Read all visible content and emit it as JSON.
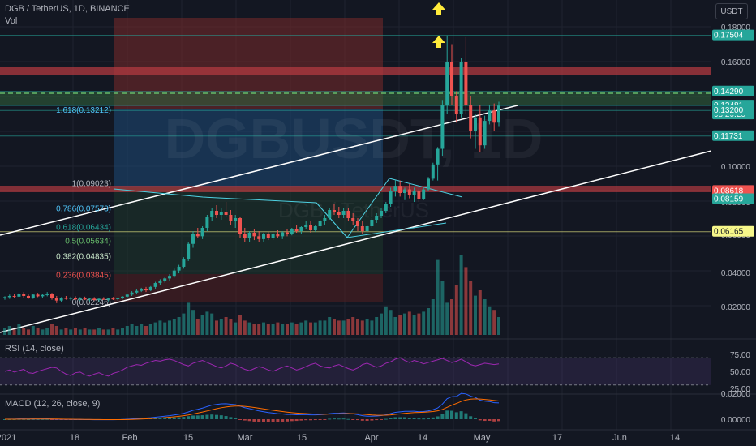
{
  "header": {
    "symbol_line": "DGB / TetherUS, 1D, BINANCE",
    "volume_label": "Vol",
    "currency_button": "USDT",
    "watermark_main": "DGBUSDT, 1D",
    "watermark_sub": "DGB / TetherUS"
  },
  "colors": {
    "background": "#131722",
    "up": "#26a69a",
    "down": "#ef5350",
    "arrow": "#ffeb3b",
    "rsi": "#9c27b0",
    "macd": "#2962ff",
    "signal": "#ff6d00",
    "channel": "#ffffff"
  },
  "chart_data": [
    {
      "type": "candlestick",
      "title": "DGB / TetherUS, 1D, BINANCE",
      "ylim": [
        0.0,
        0.19
      ],
      "y_ticks": [
        "0.02000",
        "0.04000",
        "0.06000",
        "0.08000",
        "0.10000",
        "0.16000",
        "0.18000"
      ],
      "x_ticks": [
        "2021",
        "18",
        "Feb",
        "15",
        "Mar",
        "15",
        "Apr",
        "14",
        "May",
        "17",
        "Jun",
        "14"
      ],
      "price_tags": [
        {
          "value": 0.17504,
          "label": "0.17504",
          "color": "#26a69a"
        },
        {
          "value": 0.1429,
          "label": "0.14290",
          "color": "#26a69a"
        },
        {
          "value": 0.13481,
          "label": "0.13481",
          "sub": "08:20:20",
          "color": "#26a69a"
        },
        {
          "value": 0.132,
          "label": "0.13200",
          "color": "#26a69a"
        },
        {
          "value": 0.11731,
          "label": "0.11731",
          "color": "#26a69a"
        },
        {
          "value": 0.08618,
          "label": "0.08618",
          "color": "#ef5350"
        },
        {
          "value": 0.08159,
          "label": "0.08159",
          "color": "#26a69a"
        },
        {
          "value": 0.06165,
          "label": "0.06165",
          "color": "#f7f78a"
        }
      ],
      "fib_levels": [
        {
          "ratio": "1.618",
          "value": 0.13212,
          "label": "1.618(0.13212)"
        },
        {
          "ratio": "1",
          "value": 0.09023,
          "label": "1(0.09023)"
        },
        {
          "ratio": "0.786",
          "value": 0.07573,
          "label": "0.786(0.07573)"
        },
        {
          "ratio": "0.618",
          "value": 0.06434,
          "label": "0.618(0.06434)"
        },
        {
          "ratio": "0.5",
          "value": 0.05634,
          "label": "0.5(0.05634)"
        },
        {
          "ratio": "0.382",
          "value": 0.04835,
          "label": "0.382(0.04835)"
        },
        {
          "ratio": "0.236",
          "value": 0.03845,
          "label": "0.236(0.03845)"
        },
        {
          "ratio": "0",
          "value": 0.02246,
          "label": "0(0.02246)"
        }
      ],
      "ohlc": [
        [
          0.025,
          0.026,
          0.024,
          0.0255
        ],
        [
          0.0255,
          0.027,
          0.0245,
          0.0262
        ],
        [
          0.0262,
          0.0275,
          0.025,
          0.0258
        ],
        [
          0.0258,
          0.028,
          0.0255,
          0.0275
        ],
        [
          0.0275,
          0.0285,
          0.025,
          0.0262
        ],
        [
          0.0262,
          0.027,
          0.0245,
          0.025
        ],
        [
          0.025,
          0.0275,
          0.0245,
          0.027
        ],
        [
          0.027,
          0.028,
          0.0255,
          0.026
        ],
        [
          0.026,
          0.0275,
          0.025,
          0.0268
        ],
        [
          0.0268,
          0.0285,
          0.026,
          0.0272
        ],
        [
          0.0272,
          0.028,
          0.024,
          0.0248
        ],
        [
          0.0248,
          0.0262,
          0.022,
          0.0235
        ],
        [
          0.0235,
          0.0255,
          0.0225,
          0.025
        ],
        [
          0.025,
          0.0262,
          0.024,
          0.0245
        ],
        [
          0.0245,
          0.0258,
          0.0235,
          0.0252
        ],
        [
          0.0252,
          0.026,
          0.0238,
          0.0242
        ],
        [
          0.0242,
          0.0255,
          0.0232,
          0.025
        ],
        [
          0.025,
          0.0258,
          0.0238,
          0.0241
        ],
        [
          0.0241,
          0.0252,
          0.023,
          0.0246
        ],
        [
          0.0246,
          0.0255,
          0.0235,
          0.0238
        ],
        [
          0.0238,
          0.025,
          0.0228,
          0.0245
        ],
        [
          0.0245,
          0.0255,
          0.0238,
          0.024
        ],
        [
          0.024,
          0.025,
          0.023,
          0.0247
        ],
        [
          0.0247,
          0.0256,
          0.0238,
          0.0244
        ],
        [
          0.0244,
          0.0252,
          0.0235,
          0.0248
        ],
        [
          0.0248,
          0.0262,
          0.0242,
          0.0258
        ],
        [
          0.0258,
          0.0275,
          0.025,
          0.027
        ],
        [
          0.027,
          0.029,
          0.0262,
          0.0282
        ],
        [
          0.0282,
          0.03,
          0.0275,
          0.0292
        ],
        [
          0.0292,
          0.031,
          0.0285,
          0.03
        ],
        [
          0.03,
          0.0315,
          0.0285,
          0.0295
        ],
        [
          0.0295,
          0.032,
          0.029,
          0.0315
        ],
        [
          0.0315,
          0.0345,
          0.0305,
          0.0338
        ],
        [
          0.0338,
          0.036,
          0.0325,
          0.035
        ],
        [
          0.035,
          0.0375,
          0.034,
          0.0365
        ],
        [
          0.0365,
          0.039,
          0.035,
          0.038
        ],
        [
          0.038,
          0.042,
          0.037,
          0.041
        ],
        [
          0.041,
          0.044,
          0.0395,
          0.043
        ],
        [
          0.043,
          0.048,
          0.042,
          0.047
        ],
        [
          0.047,
          0.056,
          0.046,
          0.055
        ],
        [
          0.055,
          0.062,
          0.053,
          0.06
        ],
        [
          0.06,
          0.064,
          0.058,
          0.059
        ],
        [
          0.059,
          0.065,
          0.0575,
          0.064
        ],
        [
          0.064,
          0.072,
          0.062,
          0.071
        ],
        [
          0.071,
          0.076,
          0.068,
          0.0745
        ],
        [
          0.0745,
          0.078,
          0.07,
          0.072
        ],
        [
          0.072,
          0.076,
          0.069,
          0.074
        ],
        [
          0.074,
          0.08,
          0.071,
          0.072
        ],
        [
          0.072,
          0.075,
          0.066,
          0.068
        ],
        [
          0.068,
          0.072,
          0.064,
          0.07
        ],
        [
          0.07,
          0.071,
          0.058,
          0.06
        ],
        [
          0.06,
          0.064,
          0.056,
          0.058
        ],
        [
          0.058,
          0.062,
          0.056,
          0.061
        ],
        [
          0.061,
          0.063,
          0.057,
          0.059
        ],
        [
          0.059,
          0.062,
          0.056,
          0.0575
        ],
        [
          0.0575,
          0.061,
          0.056,
          0.06
        ],
        [
          0.06,
          0.0615,
          0.057,
          0.058
        ],
        [
          0.058,
          0.061,
          0.057,
          0.0605
        ],
        [
          0.0605,
          0.0625,
          0.058,
          0.059
        ],
        [
          0.059,
          0.062,
          0.0575,
          0.0612
        ],
        [
          0.0612,
          0.063,
          0.059,
          0.06
        ],
        [
          0.06,
          0.064,
          0.0595,
          0.063
        ],
        [
          0.063,
          0.066,
          0.061,
          0.062
        ],
        [
          0.062,
          0.065,
          0.06,
          0.0645
        ],
        [
          0.0645,
          0.068,
          0.063,
          0.066
        ],
        [
          0.066,
          0.068,
          0.061,
          0.0625
        ],
        [
          0.0625,
          0.066,
          0.0615,
          0.065
        ],
        [
          0.065,
          0.069,
          0.064,
          0.068
        ],
        [
          0.068,
          0.072,
          0.066,
          0.07
        ],
        [
          0.07,
          0.076,
          0.069,
          0.075
        ],
        [
          0.075,
          0.079,
          0.072,
          0.074
        ],
        [
          0.074,
          0.077,
          0.07,
          0.072
        ],
        [
          0.072,
          0.076,
          0.07,
          0.0745
        ],
        [
          0.0745,
          0.076,
          0.068,
          0.07
        ],
        [
          0.07,
          0.073,
          0.066,
          0.068
        ],
        [
          0.068,
          0.07,
          0.062,
          0.065
        ],
        [
          0.065,
          0.068,
          0.06,
          0.062
        ],
        [
          0.062,
          0.066,
          0.061,
          0.065
        ],
        [
          0.065,
          0.07,
          0.064,
          0.069
        ],
        [
          0.069,
          0.073,
          0.067,
          0.0715
        ],
        [
          0.0715,
          0.076,
          0.07,
          0.0745
        ],
        [
          0.0745,
          0.08,
          0.073,
          0.079
        ],
        [
          0.079,
          0.088,
          0.077,
          0.086
        ],
        [
          0.086,
          0.092,
          0.083,
          0.089
        ],
        [
          0.089,
          0.092,
          0.083,
          0.085
        ],
        [
          0.085,
          0.088,
          0.081,
          0.087
        ],
        [
          0.087,
          0.09,
          0.082,
          0.084
        ],
        [
          0.084,
          0.088,
          0.08,
          0.086
        ],
        [
          0.086,
          0.0875,
          0.08,
          0.0815
        ],
        [
          0.0815,
          0.088,
          0.081,
          0.087
        ],
        [
          0.087,
          0.094,
          0.086,
          0.093
        ],
        [
          0.093,
          0.102,
          0.092,
          0.101
        ],
        [
          0.101,
          0.111,
          0.092,
          0.11
        ],
        [
          0.11,
          0.138,
          0.106,
          0.135
        ],
        [
          0.135,
          0.175,
          0.13,
          0.16
        ],
        [
          0.16,
          0.17,
          0.135,
          0.14
        ],
        [
          0.14,
          0.143,
          0.125,
          0.13
        ],
        [
          0.13,
          0.162,
          0.128,
          0.16
        ],
        [
          0.16,
          0.174,
          0.13,
          0.135
        ],
        [
          0.135,
          0.14,
          0.116,
          0.12
        ],
        [
          0.12,
          0.13,
          0.11,
          0.128
        ],
        [
          0.128,
          0.135,
          0.108,
          0.112
        ],
        [
          0.112,
          0.129,
          0.11,
          0.126
        ],
        [
          0.126,
          0.135,
          0.124,
          0.132
        ],
        [
          0.132,
          0.136,
          0.12,
          0.125
        ],
        [
          0.125,
          0.137,
          0.123,
          0.1348
        ]
      ],
      "volume": [
        4,
        5,
        3,
        6,
        4,
        3,
        5,
        4,
        3,
        4,
        6,
        5,
        3,
        4,
        3,
        4,
        3,
        4,
        3,
        3,
        4,
        3,
        3,
        4,
        3,
        4,
        5,
        6,
        5,
        6,
        5,
        6,
        7,
        8,
        7,
        8,
        9,
        10,
        12,
        18,
        14,
        9,
        11,
        13,
        12,
        8,
        9,
        10,
        9,
        7,
        11,
        8,
        7,
        6,
        6,
        7,
        6,
        6,
        7,
        6,
        6,
        7,
        6,
        7,
        8,
        7,
        7,
        8,
        8,
        10,
        9,
        8,
        8,
        9,
        10,
        9,
        8,
        9,
        8,
        10,
        12,
        16,
        14,
        10,
        11,
        12,
        13,
        11,
        12,
        13,
        15,
        20,
        42,
        30,
        18,
        20,
        28,
        45,
        38,
        30,
        22,
        25,
        20,
        16,
        14,
        10
      ]
    },
    {
      "type": "line",
      "title": "RSI (14, close)",
      "ylim": [
        25,
        75
      ],
      "y_ticks": [
        "75.00",
        "50.00",
        "25.00"
      ],
      "values": [
        50,
        52,
        49,
        51,
        53,
        48,
        47,
        50,
        52,
        54,
        56,
        55,
        50,
        46,
        44,
        48,
        49,
        45,
        43,
        46,
        48,
        45,
        43,
        47,
        49,
        52,
        56,
        58,
        60,
        59,
        62,
        64,
        66,
        65,
        67,
        68,
        66,
        63,
        60,
        58,
        62,
        64,
        66,
        63,
        60,
        57,
        55,
        58,
        62,
        60,
        56,
        53,
        51,
        54,
        57,
        55,
        52,
        50,
        53,
        56,
        58,
        55,
        52,
        54,
        57,
        60,
        62,
        58,
        56,
        55,
        58,
        60,
        57,
        54,
        52,
        55,
        60,
        62,
        59,
        56,
        58,
        62,
        64,
        68,
        70,
        66,
        63,
        66,
        64,
        61,
        63,
        65,
        67,
        69,
        66,
        63,
        65,
        68,
        64,
        60,
        58,
        60,
        62,
        61,
        60,
        61
      ]
    },
    {
      "type": "bar",
      "title": "MACD (12, 26, close, 9)",
      "ylim": [
        -0.004,
        0.022
      ],
      "y_ticks": [
        "0.02000",
        "0.00000"
      ]
    }
  ]
}
